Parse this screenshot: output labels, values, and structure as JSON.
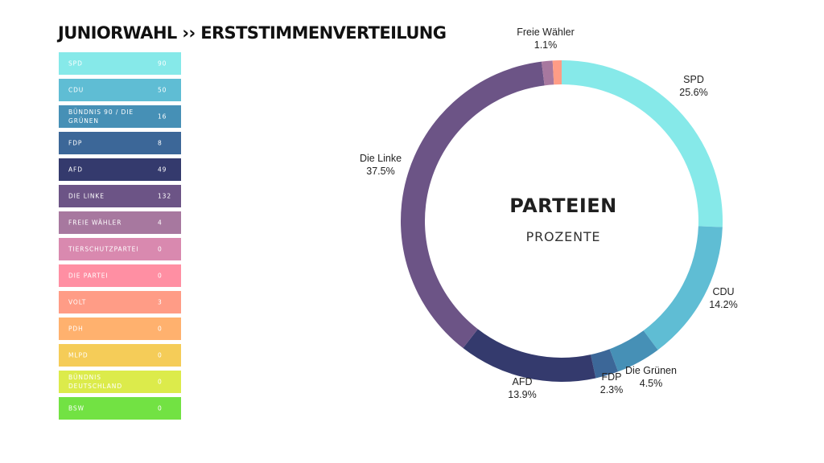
{
  "title": "JUNIORWAHL ›› ERSTSTIMMENVERTEILUNG",
  "parties": [
    {
      "name": "SPD",
      "count": "90",
      "color": "#86E9E9"
    },
    {
      "name": "CDU",
      "count": "50",
      "color": "#5FBDD4"
    },
    {
      "name": "BÜNDNIS 90 / DIE GRÜNEN",
      "count": "16",
      "color": "#4690B6"
    },
    {
      "name": "FDP",
      "count": "8",
      "color": "#3C6798"
    },
    {
      "name": "AFD",
      "count": "49",
      "color": "#343A6D"
    },
    {
      "name": "DIE LINKE",
      "count": "132",
      "color": "#6C5486"
    },
    {
      "name": "FREIE WÄHLER",
      "count": "4",
      "color": "#A7789F"
    },
    {
      "name": "TIERSCHUTZPARTEI",
      "count": "0",
      "color": "#D989AF"
    },
    {
      "name": "DIE PARTEI",
      "count": "0",
      "color": "#FF8FA3"
    },
    {
      "name": "VOLT",
      "count": "3",
      "color": "#FF9C86"
    },
    {
      "name": "PDH",
      "count": "0",
      "color": "#FFB16E"
    },
    {
      "name": "MLPD",
      "count": "0",
      "color": "#F5CC58"
    },
    {
      "name": "BÜNDNIS DEUTSCHLAND",
      "count": "0",
      "color": "#DCEB4B"
    },
    {
      "name": "BSW",
      "count": "0",
      "color": "#72E243"
    }
  ],
  "chart_data": {
    "type": "pie",
    "title": "PARTEIEN",
    "subtitle": "PROZENTE",
    "slices": [
      {
        "label": "SPD",
        "value": 25.6,
        "value_label": "25.6%",
        "color": "#86E9E9"
      },
      {
        "label": "CDU",
        "value": 14.2,
        "value_label": "14.2%",
        "color": "#5FBDD4"
      },
      {
        "label": "Die Grünen",
        "value": 4.5,
        "value_label": "4.5%",
        "color": "#4690B6"
      },
      {
        "label": "FDP",
        "value": 2.3,
        "value_label": "2.3%",
        "color": "#3C6798"
      },
      {
        "label": "AFD",
        "value": 13.9,
        "value_label": "13.9%",
        "color": "#343A6D"
      },
      {
        "label": "Die Linke",
        "value": 37.5,
        "value_label": "37.5%",
        "color": "#6C5486"
      },
      {
        "label": "Freie Wähler",
        "value": 1.1,
        "value_label": "1.1%",
        "color": "#A7789F"
      },
      {
        "label": "",
        "value": 0.9,
        "value_label": "",
        "color": "#FF9C86"
      }
    ]
  }
}
